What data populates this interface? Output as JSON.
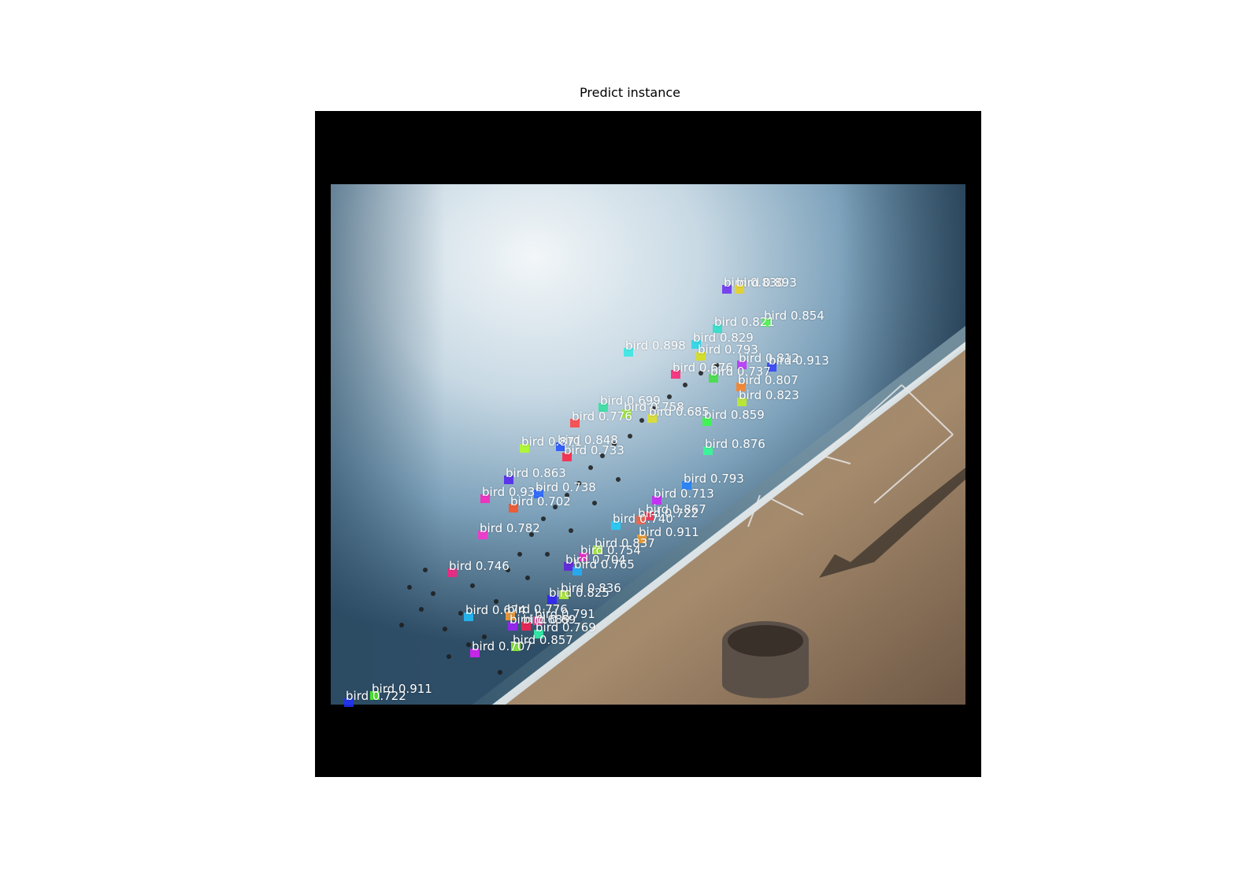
{
  "title": "Predict instance",
  "detections": [
    {
      "label": "bird",
      "score": "0.830",
      "color": "#6a2cf0"
    },
    {
      "label": "bird",
      "score": "0.893",
      "color": "#e8d21e"
    },
    {
      "label": "bird",
      "score": "0.854",
      "color": "#4cff4a"
    },
    {
      "label": "bird",
      "score": "0.821",
      "color": "#28e0c8"
    },
    {
      "label": "bird",
      "score": "0.829",
      "color": "#20d8e8"
    },
    {
      "label": "bird",
      "score": "0.898",
      "color": "#30e8e0"
    },
    {
      "label": "bird",
      "score": "0.793",
      "color": "#d8e010"
    },
    {
      "label": "bird",
      "score": "0.812",
      "color": "#c030ff"
    },
    {
      "label": "bird",
      "score": "0.913",
      "color": "#3040ff"
    },
    {
      "label": "bird",
      "score": "0.676",
      "color": "#ff2070"
    },
    {
      "label": "bird",
      "score": "0.737",
      "color": "#40e040"
    },
    {
      "label": "bird",
      "score": "0.807",
      "color": "#ff8020"
    },
    {
      "label": "bird",
      "score": "0.823",
      "color": "#c0f020"
    },
    {
      "label": "bird",
      "score": "0.699",
      "color": "#30e0a0"
    },
    {
      "label": "bird",
      "score": "0.758",
      "color": "#a0f030"
    },
    {
      "label": "bird",
      "score": "0.685",
      "color": "#e0e020"
    },
    {
      "label": "bird",
      "score": "0.859",
      "color": "#30ff40"
    },
    {
      "label": "bird",
      "score": "0.776",
      "color": "#ff4040"
    },
    {
      "label": "bird",
      "score": "0.848",
      "color": "#2050ff"
    },
    {
      "label": "bird",
      "score": "0.871",
      "color": "#b0ff20"
    },
    {
      "label": "bird",
      "score": "0.733",
      "color": "#ff2040"
    },
    {
      "label": "bird",
      "score": "0.876",
      "color": "#30ff90"
    },
    {
      "label": "bird",
      "score": "0.863",
      "color": "#5020f0"
    },
    {
      "label": "bird",
      "score": "0.793",
      "color": "#2080ff"
    },
    {
      "label": "bird",
      "score": "0.939",
      "color": "#ff20c0"
    },
    {
      "label": "bird",
      "score": "0.738",
      "color": "#2060ff"
    },
    {
      "label": "bird",
      "score": "0.713",
      "color": "#d020ff"
    },
    {
      "label": "bird",
      "score": "0.702",
      "color": "#ff5020"
    },
    {
      "label": "bird",
      "score": "0.867",
      "color": "#ff3050"
    },
    {
      "label": "bird",
      "score": "0.722",
      "color": "#ff6040"
    },
    {
      "label": "bird",
      "score": "0.740",
      "color": "#20d0ff"
    },
    {
      "label": "bird",
      "score": "0.782",
      "color": "#ff30d0"
    },
    {
      "label": "bird",
      "score": "0.911",
      "color": "#ffa020"
    },
    {
      "label": "bird",
      "score": "0.837",
      "color": "#b0ff30"
    },
    {
      "label": "bird",
      "score": "0.754",
      "color": "#ff20d0"
    },
    {
      "label": "bird",
      "score": "0.704",
      "color": "#6020e0"
    },
    {
      "label": "bird",
      "score": "0.765",
      "color": "#20b0ff"
    },
    {
      "label": "bird",
      "score": "0.746",
      "color": "#ff2080"
    },
    {
      "label": "bird",
      "score": "0.836",
      "color": "#c0ff30"
    },
    {
      "label": "bird",
      "score": "0.825",
      "color": "#3020ff"
    },
    {
      "label": "bird",
      "score": "0.674",
      "color": "#20c0ff"
    },
    {
      "label": "bird",
      "score": "0.776",
      "color": "#ffa030"
    },
    {
      "label": "bird",
      "score": "0.791",
      "color": "#ff40a0"
    },
    {
      "label": "bird",
      "score": "0.689",
      "color": "#a020ff"
    },
    {
      "label": "bird",
      "score": "0.69",
      "color": "#ff2050"
    },
    {
      "label": "bird",
      "score": "0.769",
      "color": "#30ffb0"
    },
    {
      "label": "bird",
      "score": "0.857",
      "color": "#90ff30"
    },
    {
      "label": "bird",
      "score": "0.707",
      "color": "#e020ff"
    },
    {
      "label": "bird",
      "score": "0.911",
      "color": "#50ff20"
    },
    {
      "label": "bird",
      "score": "0.722",
      "color": "#2030ff"
    }
  ]
}
